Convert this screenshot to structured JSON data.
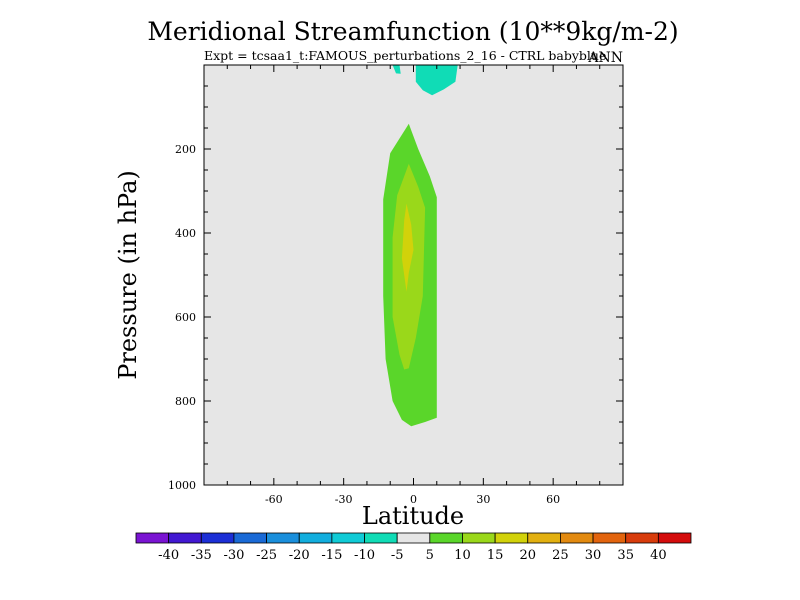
{
  "chart_data": {
    "type": "contour",
    "title": "Meridional Streamfunction (10**9kg/m-2)",
    "subtitle_left": "Expt = tcsaa1_t:FAMOUS_perturbations_2_16 - CTRL babyblue",
    "subtitle_right": "ANN",
    "xlabel": "Latitude",
    "ylabel": "Pressure (in hPa)",
    "xlim": [
      -90,
      90
    ],
    "ylim": [
      1000,
      0
    ],
    "x_ticks": [
      -60,
      -30,
      0,
      30,
      60
    ],
    "x_tick_labels": [
      "-60",
      "-30",
      "0",
      "30",
      "60"
    ],
    "y_ticks": [
      200,
      400,
      600,
      800,
      1000
    ],
    "y_tick_labels": [
      "200",
      "400",
      "600",
      "800",
      "1000"
    ],
    "background_color": "#e6e6e6",
    "colorbar": {
      "levels": [
        "-40",
        "-35",
        "-30",
        "-25",
        "-20",
        "-15",
        "-10",
        "-5",
        "5",
        "10",
        "15",
        "20",
        "25",
        "30",
        "35",
        "40"
      ],
      "colors": [
        "#7a14d2",
        "#4218d2",
        "#1c2fd6",
        "#1a6ad6",
        "#1a8fdc",
        "#12aede",
        "#10cbd6",
        "#10dcb6",
        "#e6e6e6",
        "#5ad62a",
        "#9ad81a",
        "#d2d20a",
        "#e2b010",
        "#e28a10",
        "#e2640e",
        "#d83c0c",
        "#d40c0c"
      ]
    },
    "contours": [
      {
        "name": "neg-top-small",
        "color": "#10dcb6",
        "points": [
          [
            -9,
            0
          ],
          [
            -6,
            0
          ],
          [
            -5.5,
            21
          ],
          [
            -7.5,
            20
          ]
        ]
      },
      {
        "name": "neg-top-large",
        "color": "#10dcb6",
        "points": [
          [
            1,
            0
          ],
          [
            19,
            0
          ],
          [
            18,
            40
          ],
          [
            13,
            58
          ],
          [
            8,
            72
          ],
          [
            4,
            60
          ],
          [
            1,
            40
          ]
        ]
      },
      {
        "name": "band-5-10",
        "color": "#5ad62a",
        "points": [
          [
            -2,
            140
          ],
          [
            2,
            200
          ],
          [
            7,
            265
          ],
          [
            10,
            315
          ],
          [
            10,
            840
          ],
          [
            5,
            850
          ],
          [
            -1,
            860
          ],
          [
            -5,
            845
          ],
          [
            -9,
            800
          ],
          [
            -12,
            700
          ],
          [
            -13,
            550
          ],
          [
            -13,
            320
          ],
          [
            -10,
            210
          ],
          [
            -6,
            175
          ]
        ]
      },
      {
        "name": "band-10-15",
        "color": "#9ad81a",
        "points": [
          [
            -2,
            235
          ],
          [
            2,
            290
          ],
          [
            5,
            340
          ],
          [
            4,
            550
          ],
          [
            1,
            650
          ],
          [
            -2,
            722
          ],
          [
            -4,
            725
          ],
          [
            -6,
            690
          ],
          [
            -9,
            600
          ],
          [
            -9,
            410
          ],
          [
            -7,
            310
          ]
        ]
      },
      {
        "name": "band-15-20",
        "color": "#d2d20a",
        "points": [
          [
            -3,
            330
          ],
          [
            -1,
            380
          ],
          [
            0,
            440
          ],
          [
            -2,
            495
          ],
          [
            -3,
            540
          ],
          [
            -5,
            460
          ],
          [
            -4,
            370
          ]
        ]
      }
    ]
  }
}
